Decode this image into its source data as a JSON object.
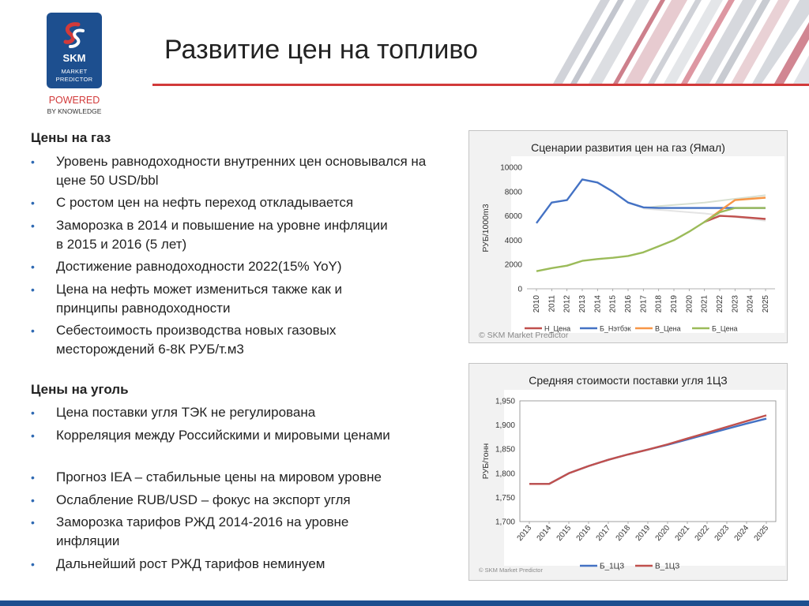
{
  "logo": {
    "brand": "SKM",
    "sub_line1": "MARKET",
    "sub_line2": "PREDICTOR",
    "powered": "POWERED",
    "by": "BY KNOWLEDGE"
  },
  "title": "Развитие цен на топливо",
  "gas_section": {
    "heading": "Цены на газ",
    "bullets": [
      "Уровень равнодоходности внутренних цен основывался на цене 50 USD/bbl",
      "С ростом цен на нефть переход откладывается",
      "Заморозка в 2014 и повышение на уровне инфляции в 2015 и 2016 (5 лет)",
      "Достижение равнодоходности 2022(15% YoY)",
      "Цена на нефть может измениться также как и принципы равнодоходности",
      "Себестоимость производства новых  газовых месторождений 6-8К РУБ/т.м3"
    ]
  },
  "coal_section": {
    "heading": "Цены на уголь",
    "bullets": [
      "Цена поставки угля ТЭК не регулирована",
      "Корреляция между Российскими и мировыми ценами",
      "Прогноз IEA – стабильные цены на мировом уровне",
      "Ослабление RUB/USD – фокус на экспорт угля",
      "Заморозка тарифов РЖД 2014-2016 на уровне инфляции",
      "Дальнейший рост РЖД тарифов неминуем"
    ]
  },
  "chart_data": [
    {
      "type": "line",
      "title": "Сценарии развития цен на газ (Ямал)",
      "ylabel": "РУБ/1000m3",
      "xlabel": "",
      "ylim": [
        0,
        10000
      ],
      "yticks": [
        0,
        2000,
        4000,
        6000,
        8000,
        10000
      ],
      "watermark": "© SKM Market Predictor",
      "categories": [
        "2010",
        "2011",
        "2012",
        "2013",
        "2014",
        "2015",
        "2016",
        "2017",
        "2018",
        "2019",
        "2020",
        "2021",
        "2022",
        "2023",
        "2024",
        "2025"
      ],
      "series": [
        {
          "name": "Н_Цена",
          "color": "#c0504d",
          "values": [
            null,
            null,
            null,
            null,
            null,
            null,
            null,
            null,
            null,
            null,
            null,
            5500,
            6000,
            5950,
            5850,
            5750
          ]
        },
        {
          "name": "Б_Нэтбэк",
          "color": "#4472c4",
          "values": [
            5400,
            7100,
            7300,
            9000,
            8750,
            8000,
            7100,
            6700,
            6650,
            6650,
            6650,
            6650,
            6650,
            6650,
            6650,
            6650
          ]
        },
        {
          "name": "В_Цена",
          "color": "#f79646",
          "values": [
            null,
            null,
            null,
            null,
            null,
            null,
            null,
            null,
            null,
            null,
            null,
            5500,
            6400,
            7300,
            7400,
            7500
          ]
        },
        {
          "name": "Б_Цена",
          "color": "#9bbb59",
          "values": [
            1450,
            1700,
            1900,
            2300,
            2450,
            2550,
            2700,
            3000,
            3500,
            4000,
            4700,
            5500,
            6300,
            6650,
            6650,
            6650
          ]
        }
      ],
      "faint_lines": [
        {
          "color": "#d7dfd0",
          "values": [
            null,
            null,
            null,
            null,
            null,
            null,
            null,
            6650,
            6800,
            6900,
            7000,
            7100,
            7250,
            7400,
            7550,
            7700
          ]
        },
        {
          "color": "#e4e4e4",
          "values": [
            null,
            null,
            null,
            null,
            null,
            null,
            null,
            6600,
            6500,
            6400,
            6300,
            6200,
            6050,
            5900,
            5750,
            5600
          ]
        }
      ],
      "legend_position": "bottom"
    },
    {
      "type": "line",
      "title": "Средняя стоимости поставки угля 1ЦЗ",
      "ylabel": "РУБ/тонн",
      "xlabel": "",
      "ylim": [
        1700,
        1950
      ],
      "yticks": [
        1700,
        1750,
        1800,
        1850,
        1900,
        1950
      ],
      "ytick_labels": [
        "1,700",
        "1,750",
        "1,800",
        "1,850",
        "1,900",
        "1,950"
      ],
      "watermark": "© SKM Market Predictor",
      "categories": [
        "2013",
        "2014",
        "2015",
        "2016",
        "2017",
        "2018",
        "2019",
        "2020",
        "2021",
        "2022",
        "2023",
        "2024",
        "2025"
      ],
      "series": [
        {
          "name": "Б_1ЦЗ",
          "color": "#4472c4",
          "values": [
            1778,
            1778,
            1800,
            1815,
            1828,
            1839,
            1849,
            1859,
            1870,
            1881,
            1892,
            1903,
            1913
          ]
        },
        {
          "name": "В_1ЦЗ",
          "color": "#c0504d",
          "values": [
            1778,
            1778,
            1800,
            1815,
            1828,
            1839,
            1849,
            1860,
            1872,
            1884,
            1896,
            1908,
            1920
          ]
        }
      ],
      "legend_position": "bottom"
    }
  ]
}
